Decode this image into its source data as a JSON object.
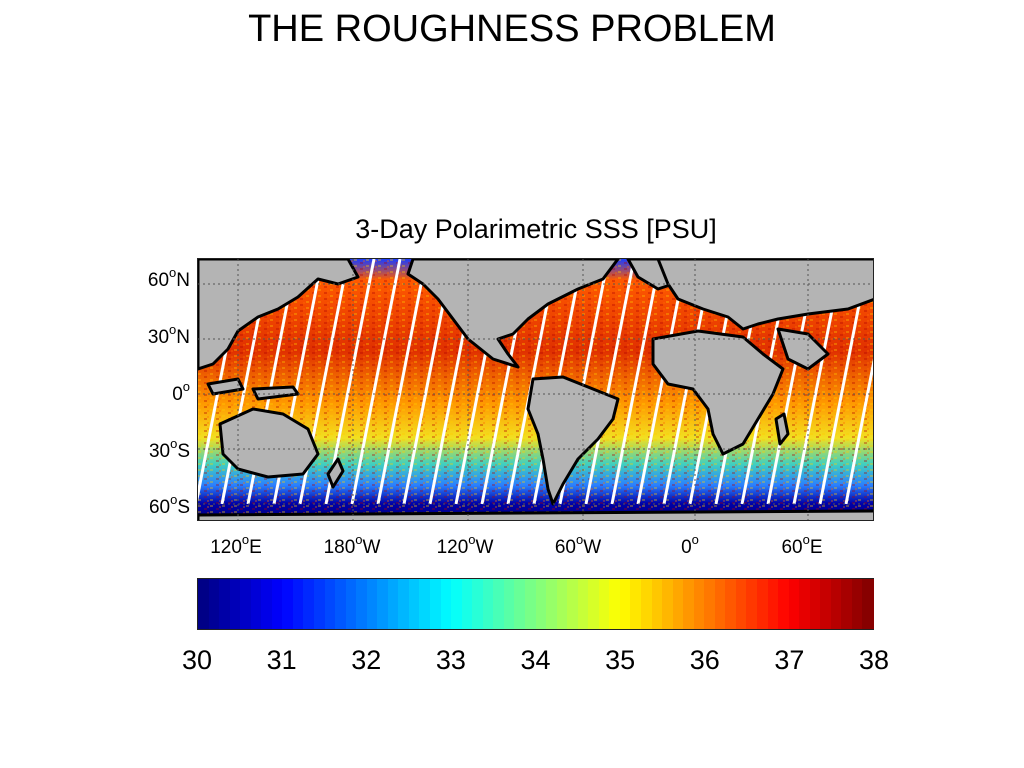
{
  "slide_title": "THE ROUGHNESS PROBLEM",
  "map": {
    "title": "3-Day Polarimetric SSS [PSU]",
    "lat_labels": [
      {
        "value": "60",
        "hemi": "N"
      },
      {
        "value": "30",
        "hemi": "N"
      },
      {
        "value": "0",
        "hemi": ""
      },
      {
        "value": "30",
        "hemi": "S"
      },
      {
        "value": "60",
        "hemi": "S"
      }
    ],
    "lon_labels": [
      {
        "value": "120",
        "hemi": "E"
      },
      {
        "value": "180",
        "hemi": "W"
      },
      {
        "value": "120",
        "hemi": "W"
      },
      {
        "value": "60",
        "hemi": "W"
      },
      {
        "value": "0",
        "hemi": ""
      },
      {
        "value": "60",
        "hemi": "E"
      }
    ],
    "degree_symbol": "o",
    "land_color": "#b4b4b4",
    "coast_color": "#000000"
  },
  "colorbar": {
    "colormap": "jet",
    "min": 30,
    "max": 38,
    "ticks": [
      "30",
      "31",
      "32",
      "33",
      "34",
      "35",
      "36",
      "37",
      "38"
    ]
  }
}
